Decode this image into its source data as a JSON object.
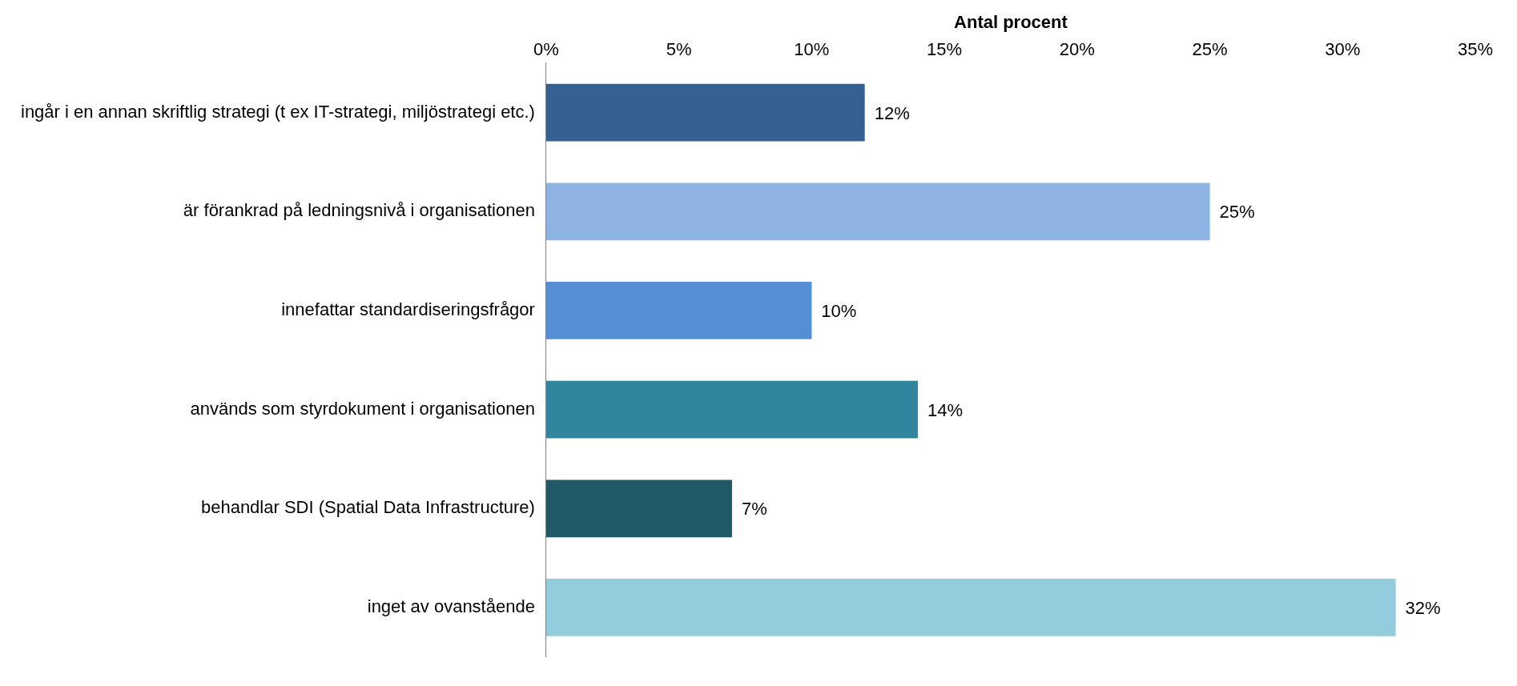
{
  "chart_data": {
    "type": "bar",
    "orientation": "horizontal",
    "xlabel": "Antal procent",
    "categories": [
      "ingår i en annan skriftlig strategi (t ex IT-strategi, miljöstrategi etc.)",
      "är förankrad på ledningsnivå i organisationen",
      "innefattar standardiseringsfrågor",
      "används som styrdokument i organisationen",
      "behandlar SDI (Spatial Data Infrastructure)",
      "inget av ovanstående"
    ],
    "values": [
      12,
      25,
      10,
      14,
      7,
      32
    ],
    "colors": [
      "#376092",
      "#8eb4e3",
      "#558ed5",
      "#31859c",
      "#215968",
      "#93cddd"
    ],
    "value_labels": [
      "12%",
      "25%",
      "10%",
      "14%",
      "7%",
      "32%"
    ],
    "xlim": [
      0,
      35
    ],
    "xticks": [
      {
        "value": 0,
        "label": "0%"
      },
      {
        "value": 5,
        "label": "5%"
      },
      {
        "value": 10,
        "label": "10%"
      },
      {
        "value": 15,
        "label": "15%"
      },
      {
        "value": 20,
        "label": "20%"
      },
      {
        "value": 25,
        "label": "25%"
      },
      {
        "value": 30,
        "label": "30%"
      },
      {
        "value": 35,
        "label": "35%"
      }
    ],
    "grid": false,
    "legend": false
  }
}
